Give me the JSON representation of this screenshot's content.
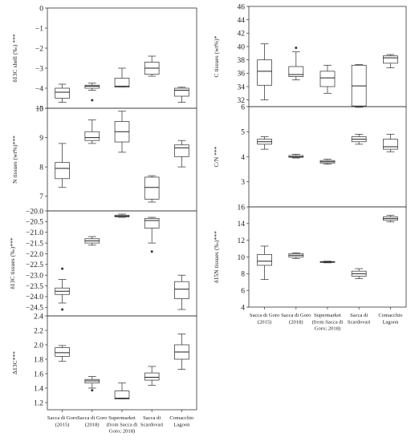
{
  "chart_data": [
    {
      "id": "d13c_shell",
      "type": "box",
      "ylabel": "δ13C shell (‰) ***",
      "ylim": [
        -5,
        0
      ],
      "yticks": [
        -5,
        -4,
        -3,
        -2,
        -1,
        0
      ],
      "categories": [
        "Sacca di Goro (2015)",
        "Sacca di Goro (2018)",
        "Supermarket (from Sacca di Goro; 2018)",
        "Sacca di Scardovari",
        "Comacchio Lagoon"
      ],
      "boxes": [
        {
          "min": -4.7,
          "q1": -4.5,
          "median": -4.2,
          "q3": -4.0,
          "max": -3.8,
          "outliers": []
        },
        {
          "min": -4.1,
          "q1": -4.0,
          "median": -3.9,
          "q3": -3.85,
          "max": -3.75,
          "outliers": [
            -4.6
          ]
        },
        {
          "min": -3.95,
          "q1": -3.95,
          "median": -3.9,
          "q3": -3.5,
          "max": -3.0,
          "outliers": []
        },
        {
          "min": -3.4,
          "q1": -3.3,
          "median": -3.0,
          "q3": -2.7,
          "max": -2.4,
          "outliers": []
        },
        {
          "min": -4.7,
          "q1": -4.4,
          "median": -4.1,
          "q3": -4.0,
          "max": -3.95,
          "outliers": []
        }
      ]
    },
    {
      "id": "c_tissues",
      "type": "box",
      "ylabel": "C tissues (wt%)*",
      "ylim": [
        31,
        46
      ],
      "yticks": [
        32,
        34,
        36,
        38,
        40,
        42,
        44,
        46
      ],
      "categories": [
        "Sacca di Goro (2015)",
        "Sacca di Goro (2018)",
        "Supermarket (from Sacca di Goro; 2018)",
        "Sacca di Scardovari",
        "Comacchio Lagoon"
      ],
      "boxes": [
        {
          "min": 32.0,
          "q1": 34.2,
          "median": 36.3,
          "q3": 38.0,
          "max": 40.4,
          "outliers": []
        },
        {
          "min": 35.0,
          "q1": 35.5,
          "median": 35.8,
          "q3": 37.0,
          "max": 39.2,
          "outliers": [
            39.8
          ]
        },
        {
          "min": 33.0,
          "q1": 34.0,
          "median": 35.3,
          "q3": 36.3,
          "max": 37.2,
          "outliers": []
        },
        {
          "min": 30.9,
          "q1": 31.1,
          "median": 34.1,
          "q3": 37.2,
          "max": 37.3,
          "outliers": []
        },
        {
          "min": 36.8,
          "q1": 37.5,
          "median": 38.3,
          "q3": 38.6,
          "max": 38.8,
          "outliers": []
        }
      ]
    },
    {
      "id": "n_tissues",
      "type": "box",
      "ylabel": "N tissues (wt%)***",
      "ylim": [
        6.5,
        10
      ],
      "yticks": [
        7,
        8,
        9,
        10
      ],
      "categories": [
        "Sacca di Goro (2015)",
        "Sacca di Goro (2018)",
        "Supermarket (from Sacca di Goro; 2018)",
        "Sacca di Scardovari",
        "Comacchio Lagoon"
      ],
      "boxes": [
        {
          "min": 7.3,
          "q1": 7.6,
          "median": 7.95,
          "q3": 8.15,
          "max": 8.8,
          "outliers": []
        },
        {
          "min": 8.8,
          "q1": 8.9,
          "median": 9.0,
          "q3": 9.2,
          "max": 9.6,
          "outliers": []
        },
        {
          "min": 8.5,
          "q1": 8.85,
          "median": 9.2,
          "q3": 9.55,
          "max": 9.9,
          "outliers": []
        },
        {
          "min": 6.8,
          "q1": 6.9,
          "median": 7.3,
          "q3": 7.65,
          "max": 7.7,
          "outliers": []
        },
        {
          "min": 8.0,
          "q1": 8.35,
          "median": 8.65,
          "q3": 8.75,
          "max": 8.9,
          "outliers": []
        }
      ]
    },
    {
      "id": "cn",
      "type": "box",
      "ylabel": "C/N ***",
      "ylim": [
        2,
        6
      ],
      "yticks": [
        3,
        4,
        5,
        6
      ],
      "categories": [
        "Sacca di Goro (2015)",
        "Sacca di Goro (2018)",
        "Supermarket (from Sacca di Goro; 2018)",
        "Sacca di Scardovari",
        "Comacchio Lagoon"
      ],
      "boxes": [
        {
          "min": 4.3,
          "q1": 4.5,
          "median": 4.6,
          "q3": 4.7,
          "max": 4.8,
          "outliers": []
        },
        {
          "min": 3.95,
          "q1": 3.98,
          "median": 4.0,
          "q3": 4.05,
          "max": 4.1,
          "outliers": []
        },
        {
          "min": 3.7,
          "q1": 3.75,
          "median": 3.8,
          "q3": 3.85,
          "max": 3.9,
          "outliers": []
        },
        {
          "min": 4.5,
          "q1": 4.6,
          "median": 4.7,
          "q3": 4.8,
          "max": 4.9,
          "outliers": []
        },
        {
          "min": 4.2,
          "q1": 4.3,
          "median": 4.4,
          "q3": 4.7,
          "max": 4.9,
          "outliers": []
        }
      ]
    },
    {
      "id": "d13c_tissues",
      "type": "box",
      "ylabel": "δ13C tissues (‰)***",
      "ylim": [
        -24.9,
        -20.0
      ],
      "yticks": [
        -24.5,
        -24.0,
        -23.5,
        -23.0,
        -22.5,
        -22.0,
        -21.5,
        -21.0,
        -20.5,
        -20.0
      ],
      "categories": [
        "Sacca di Goro (2015)",
        "Sacca di Goro (2018)",
        "Supermarket (from Sacca di Goro; 2018)",
        "Sacca di Scardovari",
        "Comacchio Lagoon"
      ],
      "boxes": [
        {
          "min": -24.3,
          "q1": -23.9,
          "median": -23.75,
          "q3": -23.6,
          "max": -23.2,
          "outliers": [
            -22.7,
            -24.6
          ]
        },
        {
          "min": -21.6,
          "q1": -21.5,
          "median": -21.4,
          "q3": -21.3,
          "max": -21.2,
          "outliers": []
        },
        {
          "min": -20.3,
          "q1": -20.28,
          "median": -20.25,
          "q3": -20.2,
          "max": -20.15,
          "outliers": []
        },
        {
          "min": -21.5,
          "q1": -20.8,
          "median": -20.45,
          "q3": -20.35,
          "max": -20.3,
          "outliers": [
            -21.9
          ]
        },
        {
          "min": -24.6,
          "q1": -24.1,
          "median": -23.65,
          "q3": -23.3,
          "max": -23.0,
          "outliers": []
        }
      ]
    },
    {
      "id": "d15n_tissues",
      "type": "box",
      "ylabel": "δ15N tissues (‰)***",
      "ylim": [
        4,
        16
      ],
      "yticks": [
        4,
        6,
        8,
        10,
        12,
        14,
        16
      ],
      "categories": [
        "Sacca di Goro (2015)",
        "Sacca di Goro (2018)",
        "Supermarket (from Sacca di Goro; 2018)",
        "Sacca di Scardovari",
        "Comacchio Lagoon"
      ],
      "boxes": [
        {
          "min": 7.3,
          "q1": 9.0,
          "median": 9.5,
          "q3": 10.3,
          "max": 11.3,
          "outliers": []
        },
        {
          "min": 9.8,
          "q1": 10.0,
          "median": 10.2,
          "q3": 10.4,
          "max": 10.5,
          "outliers": []
        },
        {
          "min": 9.3,
          "q1": 9.35,
          "median": 9.4,
          "q3": 9.45,
          "max": 9.5,
          "outliers": []
        },
        {
          "min": 7.4,
          "q1": 7.7,
          "median": 8.0,
          "q3": 8.3,
          "max": 8.6,
          "outliers": []
        },
        {
          "min": 14.2,
          "q1": 14.4,
          "median": 14.6,
          "q3": 14.8,
          "max": 15.0,
          "outliers": []
        }
      ]
    },
    {
      "id": "cap_delta13c",
      "type": "box",
      "ylabel": "Δ13C***",
      "ylim": [
        1.1,
        2.4
      ],
      "yticks": [
        1.2,
        1.4,
        1.6,
        1.8,
        2.0,
        2.2,
        2.4
      ],
      "categories": [
        "Sacca di Goro (2015)",
        "Sacca di Goro (2018)",
        "Supermarket (from Sacca di Goro; 2018)",
        "Sacca di Scardovari",
        "Comacchio Lagoon"
      ],
      "boxes": [
        {
          "min": 1.77,
          "q1": 1.84,
          "median": 1.89,
          "q3": 1.96,
          "max": 1.99,
          "outliers": []
        },
        {
          "min": 1.4,
          "q1": 1.47,
          "median": 1.5,
          "q3": 1.52,
          "max": 1.56,
          "outliers": [
            1.37
          ]
        },
        {
          "min": 1.25,
          "q1": 1.25,
          "median": 1.26,
          "q3": 1.36,
          "max": 1.47,
          "outliers": []
        },
        {
          "min": 1.44,
          "q1": 1.51,
          "median": 1.55,
          "q3": 1.61,
          "max": 1.7,
          "outliers": []
        },
        {
          "min": 1.66,
          "q1": 1.8,
          "median": 1.9,
          "q3": 2.0,
          "max": 2.15,
          "outliers": []
        }
      ]
    }
  ],
  "left_x_labels": [
    [
      "Sacca di Goro",
      "(2015)"
    ],
    [
      "Sacca di Goro",
      "(2018)"
    ],
    [
      "Supermarket",
      "(from Sacca di",
      "Goro; 2018)"
    ],
    [
      "Sacca di",
      "Scardovari"
    ],
    [
      "Comacchio",
      "Lagoon"
    ]
  ],
  "right_x_labels": [
    [
      "Sacca di Goro",
      "(2015)"
    ],
    [
      "Sacca di Goro",
      "(2018)"
    ],
    [
      "Supermarket",
      "(from Sacca di",
      "Goro; 2018)"
    ],
    [
      "Sacca di",
      "Scardovari"
    ],
    [
      "Comacchio",
      "Lagoon"
    ]
  ]
}
